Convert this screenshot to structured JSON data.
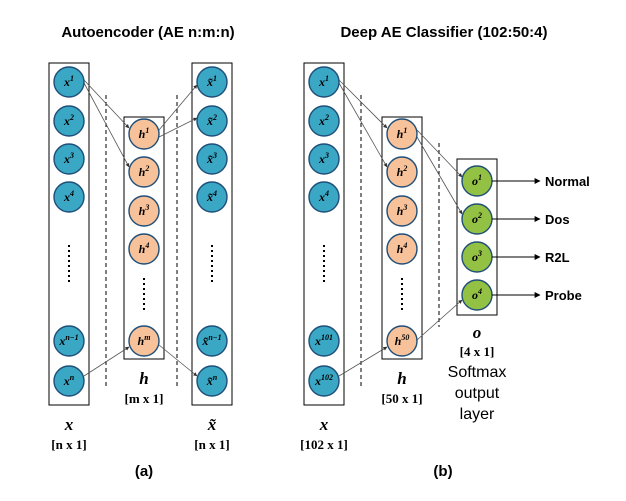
{
  "titles": {
    "left": "Autoencoder (AE n:m:n)",
    "right": "Deep AE Classifier (102:50:4)"
  },
  "captions": {
    "left": "(a)",
    "right": "(b)"
  },
  "left_diagram": {
    "input_nodes": [
      {
        "base": "x",
        "sup": "1"
      },
      {
        "base": "x",
        "sup": "2"
      },
      {
        "base": "x",
        "sup": "3"
      },
      {
        "base": "x",
        "sup": "4"
      },
      {
        "base": "x",
        "sup": "n−1"
      },
      {
        "base": "x",
        "sup": "n"
      }
    ],
    "hidden_nodes": [
      {
        "base": "h",
        "sup": "1"
      },
      {
        "base": "h",
        "sup": "2"
      },
      {
        "base": "h",
        "sup": "3"
      },
      {
        "base": "h",
        "sup": "4"
      },
      {
        "base": "h",
        "sup": "m"
      }
    ],
    "output_nodes": [
      {
        "base": "x̃",
        "sup": "1"
      },
      {
        "base": "x̃",
        "sup": "2"
      },
      {
        "base": "x̃",
        "sup": "3"
      },
      {
        "base": "x̃",
        "sup": "4"
      },
      {
        "base": "x̃",
        "sup": "n−1"
      },
      {
        "base": "x̃",
        "sup": "n"
      }
    ],
    "input_label": "x",
    "input_dim": "[n x 1]",
    "hidden_label": "h",
    "hidden_dim": "[m x 1]",
    "output_label": "x̃",
    "output_dim": "[n x 1]"
  },
  "right_diagram": {
    "input_nodes": [
      {
        "base": "x",
        "sup": "1"
      },
      {
        "base": "x",
        "sup": "2"
      },
      {
        "base": "x",
        "sup": "3"
      },
      {
        "base": "x",
        "sup": "4"
      },
      {
        "base": "x",
        "sup": "101"
      },
      {
        "base": "x",
        "sup": "102"
      }
    ],
    "hidden_nodes": [
      {
        "base": "h",
        "sup": "1"
      },
      {
        "base": "h",
        "sup": "2"
      },
      {
        "base": "h",
        "sup": "3"
      },
      {
        "base": "h",
        "sup": "4"
      },
      {
        "base": "h",
        "sup": "50"
      }
    ],
    "output_nodes": [
      {
        "base": "o",
        "sup": "1"
      },
      {
        "base": "o",
        "sup": "2"
      },
      {
        "base": "o",
        "sup": "3"
      },
      {
        "base": "o",
        "sup": "4"
      }
    ],
    "classes": [
      "Normal",
      "Dos",
      "R2L",
      "Probe"
    ],
    "input_label": "x",
    "input_dim": "[102 x 1]",
    "hidden_label": "h",
    "hidden_dim": "[50 x 1]",
    "output_label": "o",
    "output_dim": "[4 x 1]",
    "softmax_lines": [
      "Softmax",
      "output",
      "layer"
    ]
  },
  "colors": {
    "input": "#3aa7c4",
    "hidden": "#f7c29a",
    "output": "#92c144"
  }
}
